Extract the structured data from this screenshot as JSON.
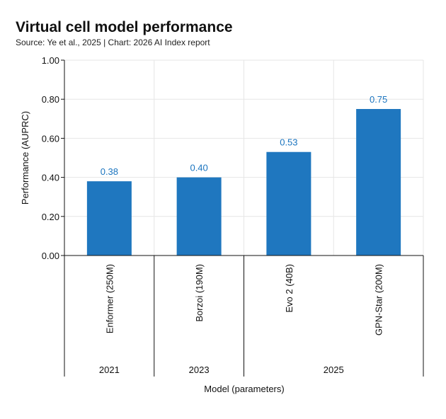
{
  "header": {
    "title": "Virtual cell model performance",
    "subtitle": "Source: Ye et al., 2025 | Chart: 2026 AI Index report"
  },
  "colors": {
    "bar": "#1f77bf",
    "value_label": "#1a74bf",
    "grid": "#e6e6e6"
  },
  "chart_data": {
    "type": "bar",
    "title": "Virtual cell model performance",
    "categories": [
      "Enformer (250M)",
      "Borzoi (190M)",
      "Evo 2 (40B)",
      "GPN-Star (200M)"
    ],
    "groups": [
      {
        "label": "2021",
        "categories": [
          "Enformer (250M)"
        ]
      },
      {
        "label": "2023",
        "categories": [
          "Borzoi (190M)"
        ]
      },
      {
        "label": "2025",
        "categories": [
          "Evo 2 (40B)",
          "GPN-Star (200M)"
        ]
      }
    ],
    "values": [
      0.38,
      0.4,
      0.53,
      0.75
    ],
    "value_labels": [
      "0.38",
      "0.40",
      "0.53",
      "0.75"
    ],
    "xlabel": "Model (parameters)",
    "ylabel": "Performance (AUPRC)",
    "ylim": [
      0,
      1
    ],
    "yticks": [
      0.0,
      0.2,
      0.4,
      0.6,
      0.8,
      1.0
    ],
    "ytick_labels": [
      "0.00",
      "0.20",
      "0.40",
      "0.60",
      "0.80",
      "1.00"
    ],
    "grid": true
  }
}
